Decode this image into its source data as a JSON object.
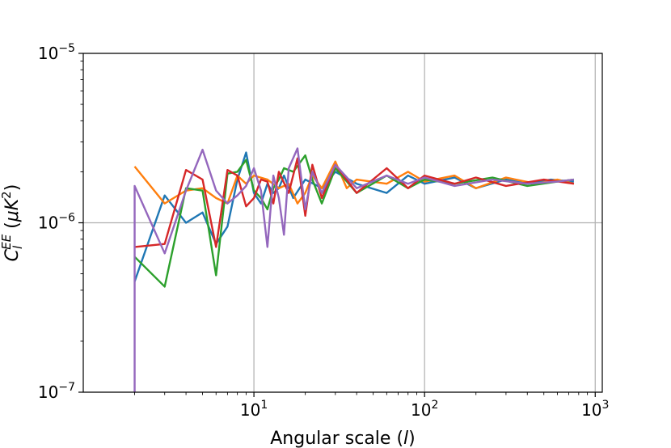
{
  "chart_data": {
    "type": "line",
    "title": "",
    "xlabel": "Angular scale (l)",
    "ylabel": "C_l^EE (μK^2)",
    "xscale": "log",
    "yscale": "log",
    "xlim": [
      1,
      1100
    ],
    "ylim": [
      1e-07,
      1e-05
    ],
    "grid": true,
    "legend": "none",
    "x_tick_labels": [
      {
        "value": 10,
        "base": "10",
        "exp": "1"
      },
      {
        "value": 100,
        "base": "10",
        "exp": "2"
      },
      {
        "value": 1000,
        "base": "10",
        "exp": "3"
      }
    ],
    "y_tick_labels": [
      {
        "value": 1e-07,
        "base": "10",
        "exp": "−7"
      },
      {
        "value": 1e-06,
        "base": "10",
        "exp": "−6"
      },
      {
        "value": 1e-05,
        "base": "10",
        "exp": "−5"
      }
    ],
    "series": [
      {
        "color": "#1f77b4",
        "points": [
          [
            2,
            4.5e-07
          ],
          [
            3,
            1.45e-06
          ],
          [
            4,
            1e-06
          ],
          [
            5,
            1.15e-06
          ],
          [
            6,
            7.5e-07
          ],
          [
            7,
            9.5e-07
          ],
          [
            8,
            1.8e-06
          ],
          [
            9,
            2.6e-06
          ],
          [
            10,
            1.5e-06
          ],
          [
            11,
            1.3e-06
          ],
          [
            12,
            1.7e-06
          ],
          [
            13,
            1.5e-06
          ],
          [
            14,
            1.6e-06
          ],
          [
            15,
            1.9e-06
          ],
          [
            17,
            1.4e-06
          ],
          [
            20,
            1.8e-06
          ],
          [
            25,
            1.6e-06
          ],
          [
            30,
            2e-06
          ],
          [
            40,
            1.7e-06
          ],
          [
            60,
            1.5e-06
          ],
          [
            80,
            1.9e-06
          ],
          [
            100,
            1.7e-06
          ],
          [
            150,
            1.85e-06
          ],
          [
            200,
            1.6e-06
          ],
          [
            300,
            1.8e-06
          ],
          [
            400,
            1.7e-06
          ],
          [
            550,
            1.8e-06
          ],
          [
            750,
            1.75e-06
          ]
        ]
      },
      {
        "color": "#ff7f0e",
        "points": [
          [
            2,
            2.15e-06
          ],
          [
            3,
            1.3e-06
          ],
          [
            4,
            1.55e-06
          ],
          [
            5,
            1.6e-06
          ],
          [
            6,
            1.4e-06
          ],
          [
            7,
            1.3e-06
          ],
          [
            8,
            1.9e-06
          ],
          [
            9,
            1.7e-06
          ],
          [
            10,
            1.9e-06
          ],
          [
            12,
            1.8e-06
          ],
          [
            14,
            1.6e-06
          ],
          [
            16,
            1.7e-06
          ],
          [
            18,
            1.3e-06
          ],
          [
            20,
            1.5e-06
          ],
          [
            22,
            1.9e-06
          ],
          [
            25,
            1.6e-06
          ],
          [
            30,
            2.3e-06
          ],
          [
            35,
            1.6e-06
          ],
          [
            40,
            1.8e-06
          ],
          [
            60,
            1.7e-06
          ],
          [
            80,
            2e-06
          ],
          [
            100,
            1.75e-06
          ],
          [
            150,
            1.9e-06
          ],
          [
            200,
            1.6e-06
          ],
          [
            300,
            1.85e-06
          ],
          [
            450,
            1.7e-06
          ],
          [
            600,
            1.8e-06
          ],
          [
            750,
            1.7e-06
          ]
        ]
      },
      {
        "color": "#2ca02c",
        "points": [
          [
            2,
            6.3e-07
          ],
          [
            3,
            4.2e-07
          ],
          [
            4,
            1.6e-06
          ],
          [
            5,
            1.55e-06
          ],
          [
            6,
            4.9e-07
          ],
          [
            7,
            1.95e-06
          ],
          [
            8,
            2e-06
          ],
          [
            9,
            2.35e-06
          ],
          [
            10,
            1.55e-06
          ],
          [
            11,
            1.4e-06
          ],
          [
            12,
            1.2e-06
          ],
          [
            13,
            1.6e-06
          ],
          [
            14,
            1.8e-06
          ],
          [
            15,
            2.1e-06
          ],
          [
            17,
            2e-06
          ],
          [
            20,
            2.5e-06
          ],
          [
            22,
            1.8e-06
          ],
          [
            25,
            1.3e-06
          ],
          [
            30,
            2.1e-06
          ],
          [
            40,
            1.5e-06
          ],
          [
            60,
            1.9e-06
          ],
          [
            80,
            1.6e-06
          ],
          [
            100,
            1.8e-06
          ],
          [
            150,
            1.7e-06
          ],
          [
            250,
            1.85e-06
          ],
          [
            400,
            1.65e-06
          ],
          [
            600,
            1.75e-06
          ],
          [
            750,
            1.8e-06
          ]
        ]
      },
      {
        "color": "#d62728",
        "points": [
          [
            2,
            7.2e-07
          ],
          [
            3,
            7.5e-07
          ],
          [
            4,
            2.05e-06
          ],
          [
            5,
            1.8e-06
          ],
          [
            6,
            7.2e-07
          ],
          [
            7,
            2.05e-06
          ],
          [
            8,
            1.9e-06
          ],
          [
            9,
            1.25e-06
          ],
          [
            10,
            1.4e-06
          ],
          [
            11,
            1.8e-06
          ],
          [
            12,
            1.75e-06
          ],
          [
            13,
            1.3e-06
          ],
          [
            14,
            2e-06
          ],
          [
            16,
            1.5e-06
          ],
          [
            18,
            2.4e-06
          ],
          [
            20,
            1.1e-06
          ],
          [
            22,
            2.2e-06
          ],
          [
            25,
            1.4e-06
          ],
          [
            30,
            2.2e-06
          ],
          [
            40,
            1.5e-06
          ],
          [
            60,
            2.1e-06
          ],
          [
            80,
            1.6e-06
          ],
          [
            100,
            1.9e-06
          ],
          [
            150,
            1.7e-06
          ],
          [
            200,
            1.85e-06
          ],
          [
            300,
            1.65e-06
          ],
          [
            500,
            1.8e-06
          ],
          [
            750,
            1.7e-06
          ]
        ]
      },
      {
        "color": "#9467bd",
        "points": [
          [
            2,
            1e-07
          ],
          [
            2,
            1.65e-06
          ],
          [
            3,
            6.6e-07
          ],
          [
            4,
            1.55e-06
          ],
          [
            5,
            2.7e-06
          ],
          [
            6,
            1.55e-06
          ],
          [
            7,
            1.3e-06
          ],
          [
            8,
            1.45e-06
          ],
          [
            9,
            1.65e-06
          ],
          [
            10,
            2.1e-06
          ],
          [
            11,
            1.55e-06
          ],
          [
            12,
            7.2e-07
          ],
          [
            13,
            1.9e-06
          ],
          [
            14,
            1.4e-06
          ],
          [
            15,
            8.5e-07
          ],
          [
            16,
            2.1e-06
          ],
          [
            18,
            2.75e-06
          ],
          [
            20,
            1.2e-06
          ],
          [
            22,
            2e-06
          ],
          [
            25,
            1.5e-06
          ],
          [
            30,
            2.2e-06
          ],
          [
            40,
            1.6e-06
          ],
          [
            60,
            1.9e-06
          ],
          [
            80,
            1.7e-06
          ],
          [
            100,
            1.85e-06
          ],
          [
            150,
            1.65e-06
          ],
          [
            250,
            1.8e-06
          ],
          [
            400,
            1.7e-06
          ],
          [
            600,
            1.75e-06
          ],
          [
            750,
            1.8e-06
          ]
        ]
      }
    ]
  }
}
